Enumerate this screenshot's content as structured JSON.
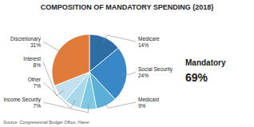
{
  "chart_data": {
    "type": "pie",
    "title": "COMPOSITION OF MANDATORY SPENDING (2018)",
    "categories": [
      "Medicare",
      "Social Security",
      "Medicaid",
      "Income Security",
      "Other",
      "Interest",
      "Discretionary"
    ],
    "values": [
      14,
      24,
      9,
      7,
      7,
      8,
      31
    ],
    "value_labels": [
      "14%",
      "24%",
      "9%",
      "7%",
      "7%",
      "8%",
      "31%"
    ],
    "colors": [
      "#2e6da4",
      "#3a87c8",
      "#5bafd6",
      "#7ec8e3",
      "#a8d8ea",
      "#c2e0f0",
      "#e07b39"
    ],
    "data_labels": true,
    "annotations": [
      "Mandatory",
      "69%",
      "Source: Congressional Budget Office, Haver"
    ]
  }
}
